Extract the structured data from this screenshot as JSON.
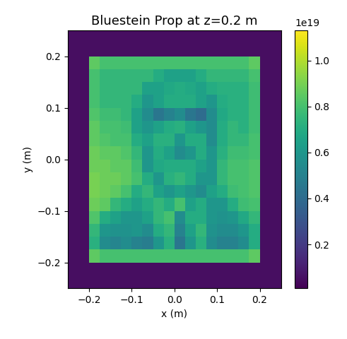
{
  "chart_data": {
    "type": "heatmap",
    "title": "Bluestein Prop at z=0.2 m",
    "x_label": "x (m)",
    "y_label": "y (m)",
    "xlim": [
      -0.25,
      0.25
    ],
    "ylim": [
      -0.25,
      0.25
    ],
    "xticks": [
      {
        "value": -0.2,
        "label": "−0.2"
      },
      {
        "value": -0.1,
        "label": "−0.1"
      },
      0.0,
      0.1,
      0.2
    ],
    "yticks": [
      {
        "value": -0.2,
        "label": "−0.2"
      },
      {
        "value": -0.1,
        "label": "−0.1"
      },
      0.0,
      0.1,
      0.2
    ],
    "x_edges": [
      -0.25,
      -0.225,
      -0.2,
      -0.175,
      -0.15,
      -0.125,
      -0.1,
      -0.075,
      -0.05,
      -0.025,
      0.0,
      0.025,
      0.05,
      0.075,
      0.1,
      0.125,
      0.15,
      0.175,
      0.2,
      0.225,
      0.25
    ],
    "y_edges": [
      0.25,
      0.225,
      0.2,
      0.175,
      0.15,
      0.125,
      0.1,
      0.075,
      0.05,
      0.025,
      0.0,
      -0.025,
      -0.05,
      -0.075,
      -0.1,
      -0.125,
      -0.15,
      -0.175,
      -0.2,
      -0.225,
      -0.25
    ],
    "cells": [
      [
        0.05,
        0.05,
        0.05,
        0.05,
        0.05,
        0.05,
        0.05,
        0.05,
        0.05,
        0.05,
        0.05,
        0.05,
        0.05,
        0.05,
        0.05,
        0.05,
        0.05,
        0.05,
        0.05,
        0.05
      ],
      [
        0.05,
        0.05,
        0.05,
        0.05,
        0.05,
        0.05,
        0.05,
        0.05,
        0.05,
        0.05,
        0.05,
        0.05,
        0.05,
        0.05,
        0.05,
        0.05,
        0.05,
        0.05,
        0.05,
        0.05
      ],
      [
        0.05,
        0.05,
        0.85,
        0.8,
        0.8,
        0.8,
        0.8,
        0.8,
        0.8,
        0.8,
        0.8,
        0.8,
        0.8,
        0.8,
        0.8,
        0.8,
        0.8,
        0.85,
        0.05,
        0.05
      ],
      [
        0.05,
        0.05,
        0.8,
        0.75,
        0.75,
        0.75,
        0.75,
        0.75,
        0.7,
        0.65,
        0.65,
        0.65,
        0.7,
        0.75,
        0.75,
        0.75,
        0.75,
        0.8,
        0.05,
        0.05
      ],
      [
        0.05,
        0.05,
        0.8,
        0.75,
        0.75,
        0.75,
        0.75,
        0.65,
        0.65,
        0.68,
        0.7,
        0.68,
        0.65,
        0.7,
        0.72,
        0.72,
        0.72,
        0.78,
        0.05,
        0.05
      ],
      [
        0.05,
        0.05,
        0.8,
        0.75,
        0.75,
        0.75,
        0.7,
        0.6,
        0.65,
        0.7,
        0.7,
        0.7,
        0.65,
        0.6,
        0.7,
        0.72,
        0.72,
        0.78,
        0.05,
        0.05
      ],
      [
        0.05,
        0.05,
        0.82,
        0.78,
        0.78,
        0.75,
        0.65,
        0.55,
        0.45,
        0.5,
        0.55,
        0.45,
        0.4,
        0.55,
        0.68,
        0.72,
        0.72,
        0.78,
        0.05,
        0.05
      ],
      [
        0.05,
        0.05,
        0.85,
        0.8,
        0.8,
        0.78,
        0.65,
        0.6,
        0.65,
        0.7,
        0.72,
        0.65,
        0.6,
        0.55,
        0.7,
        0.75,
        0.72,
        0.78,
        0.05,
        0.05
      ],
      [
        0.05,
        0.05,
        0.85,
        0.82,
        0.8,
        0.8,
        0.7,
        0.65,
        0.72,
        0.72,
        0.6,
        0.7,
        0.7,
        0.55,
        0.7,
        0.75,
        0.75,
        0.8,
        0.05,
        0.05
      ],
      [
        0.05,
        0.05,
        0.88,
        0.85,
        0.85,
        0.82,
        0.75,
        0.6,
        0.7,
        0.65,
        0.55,
        0.6,
        0.7,
        0.6,
        0.72,
        0.78,
        0.78,
        0.8,
        0.05,
        0.05
      ],
      [
        0.05,
        0.05,
        0.88,
        0.88,
        0.85,
        0.85,
        0.78,
        0.6,
        0.68,
        0.7,
        0.7,
        0.7,
        0.65,
        0.6,
        0.75,
        0.8,
        0.8,
        0.82,
        0.05,
        0.05
      ],
      [
        0.05,
        0.05,
        0.9,
        0.88,
        0.88,
        0.85,
        0.8,
        0.7,
        0.6,
        0.72,
        0.75,
        0.7,
        0.6,
        0.6,
        0.75,
        0.8,
        0.8,
        0.82,
        0.05,
        0.05
      ],
      [
        0.05,
        0.05,
        0.9,
        0.88,
        0.85,
        0.8,
        0.7,
        0.75,
        0.65,
        0.6,
        0.65,
        0.6,
        0.55,
        0.65,
        0.7,
        0.78,
        0.8,
        0.82,
        0.05,
        0.05
      ],
      [
        0.05,
        0.05,
        0.88,
        0.85,
        0.75,
        0.7,
        0.65,
        0.7,
        0.75,
        0.7,
        0.8,
        0.65,
        0.7,
        0.6,
        0.6,
        0.7,
        0.78,
        0.8,
        0.05,
        0.05
      ],
      [
        0.05,
        0.05,
        0.82,
        0.7,
        0.65,
        0.6,
        0.6,
        0.65,
        0.75,
        0.8,
        0.55,
        0.7,
        0.7,
        0.6,
        0.58,
        0.6,
        0.68,
        0.75,
        0.05,
        0.05
      ],
      [
        0.05,
        0.05,
        0.75,
        0.6,
        0.58,
        0.58,
        0.6,
        0.55,
        0.7,
        0.75,
        0.5,
        0.65,
        0.75,
        0.58,
        0.55,
        0.55,
        0.6,
        0.7,
        0.05,
        0.05
      ],
      [
        0.05,
        0.05,
        0.72,
        0.55,
        0.52,
        0.55,
        0.5,
        0.48,
        0.6,
        0.72,
        0.45,
        0.6,
        0.72,
        0.55,
        0.5,
        0.5,
        0.55,
        0.7,
        0.05,
        0.05
      ],
      [
        0.05,
        0.05,
        0.85,
        0.8,
        0.8,
        0.8,
        0.8,
        0.8,
        0.8,
        0.8,
        0.8,
        0.8,
        0.8,
        0.8,
        0.8,
        0.8,
        0.8,
        0.85,
        0.05,
        0.05
      ],
      [
        0.05,
        0.05,
        0.05,
        0.05,
        0.05,
        0.05,
        0.05,
        0.05,
        0.05,
        0.05,
        0.05,
        0.05,
        0.05,
        0.05,
        0.05,
        0.05,
        0.05,
        0.05,
        0.05,
        0.05
      ],
      [
        0.05,
        0.05,
        0.05,
        0.05,
        0.05,
        0.05,
        0.05,
        0.05,
        0.05,
        0.05,
        0.05,
        0.05,
        0.05,
        0.05,
        0.05,
        0.05,
        0.05,
        0.05,
        0.05,
        0.05
      ]
    ],
    "colorbar_range": [
      0.01,
      1.13
    ],
    "colorbar_ticks": [
      0.2,
      0.4,
      0.6,
      0.8,
      1.0
    ],
    "colorbar_multiplier": "1e19"
  }
}
